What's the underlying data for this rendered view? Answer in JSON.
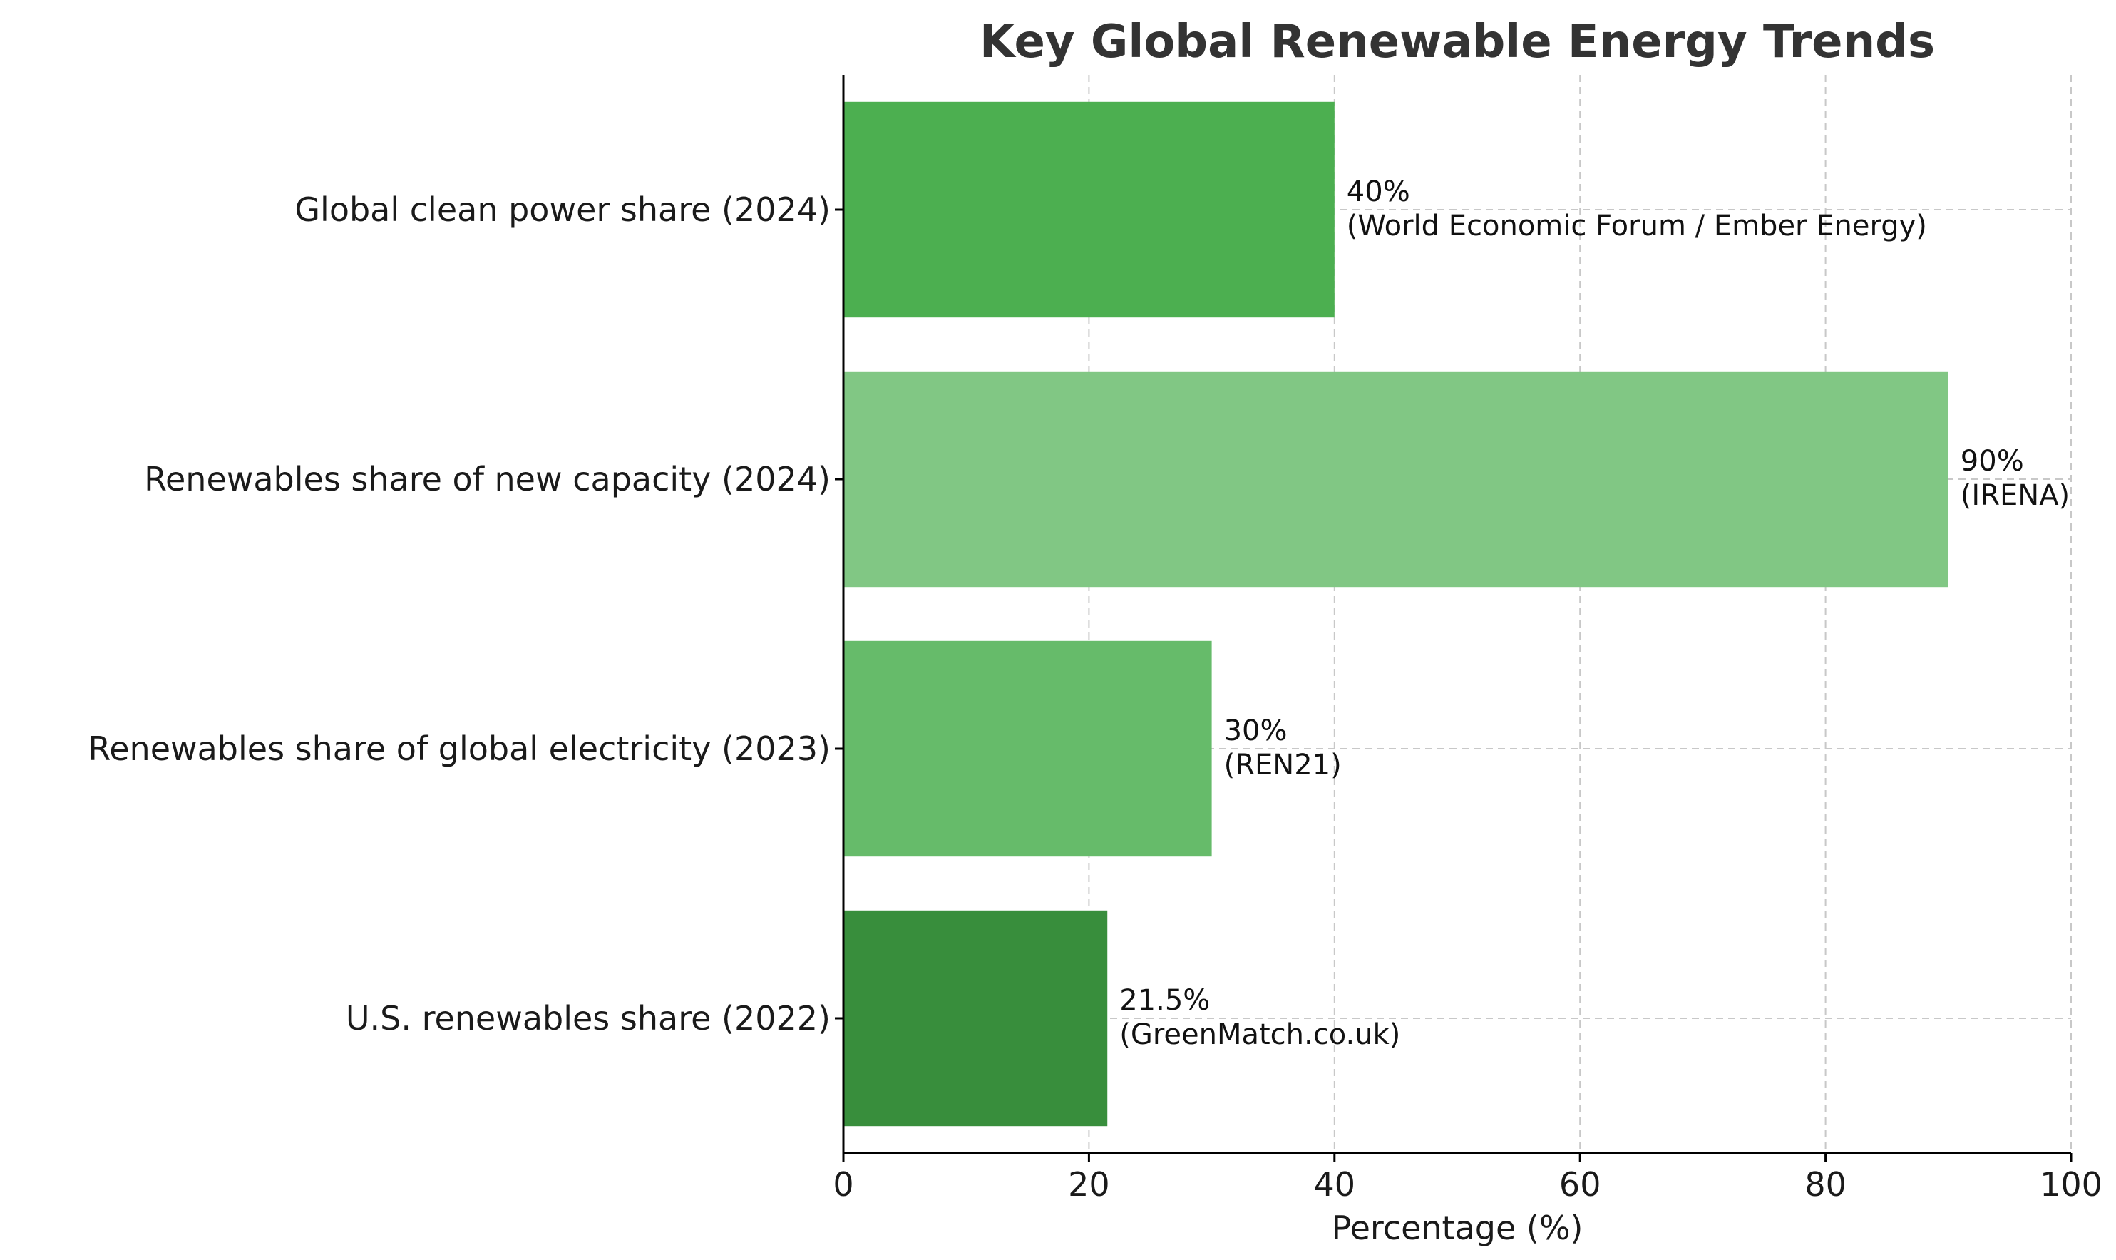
{
  "chart_data": {
    "type": "bar",
    "orientation": "horizontal",
    "title": "Key Global Renewable Energy Trends",
    "xlabel": "Percentage (%)",
    "ylabel": "",
    "xlim": [
      0,
      100
    ],
    "xticks": [
      "0",
      "20",
      "40",
      "60",
      "80",
      "100"
    ],
    "grid": true,
    "categories": [
      "Global clean power share (2024)",
      "Renewables share of new capacity (2024)",
      "Renewables share of global electricity (2023)",
      "U.S. renewables share (2022)"
    ],
    "values": [
      40,
      90,
      30,
      21.5
    ],
    "value_labels": [
      "40%",
      "90%",
      "30%",
      "21.5%"
    ],
    "sources": [
      "(World Economic Forum / Ember Energy)",
      "(IRENA)",
      "(REN21)",
      "(GreenMatch.co.uk)"
    ],
    "colors": [
      "#4caf50",
      "#81c784",
      "#66bb6a",
      "#388e3c"
    ]
  }
}
